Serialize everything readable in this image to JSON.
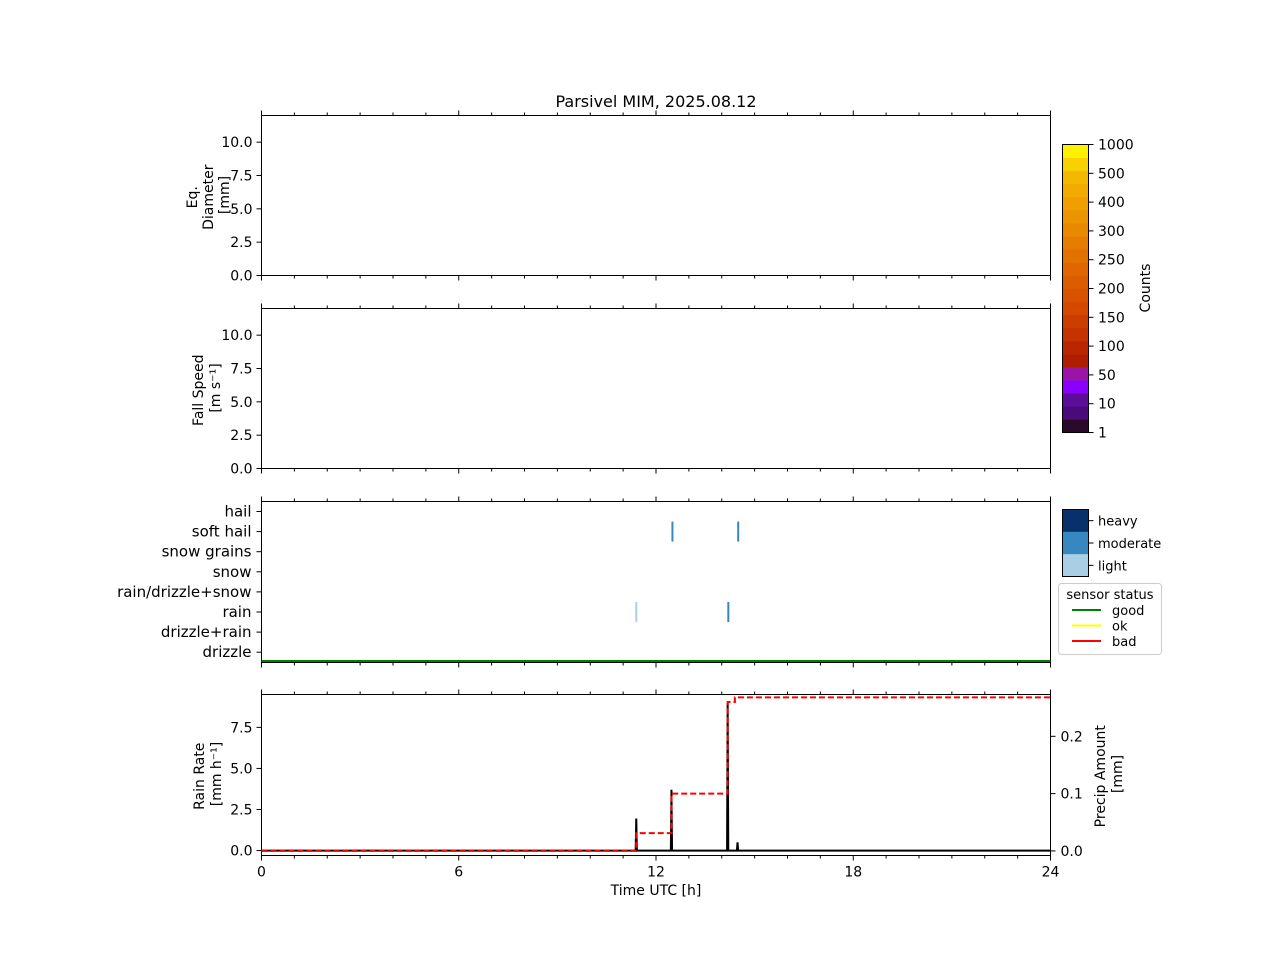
{
  "chart_data": {
    "title": "Parsivel MIM, 2025.08.12",
    "xlabel": "Time UTC [h]",
    "x_ticks": [
      "0",
      "6",
      "12",
      "18",
      "24"
    ],
    "xlim": [
      0,
      24
    ],
    "panels": [
      {
        "type": "heatmap",
        "ylabel_lines": [
          "Eq.",
          "Diameter",
          "[mm]"
        ],
        "ylim": [
          0,
          12
        ],
        "y_ticks": [
          "0.0",
          "2.5",
          "5.0",
          "7.5",
          "10.0"
        ],
        "data": []
      },
      {
        "type": "heatmap",
        "ylabel_lines": [
          "Fall Speed",
          "[m s⁻¹]"
        ],
        "ylim": [
          0,
          12
        ],
        "y_ticks": [
          "0.0",
          "2.5",
          "5.0",
          "7.5",
          "10.0"
        ],
        "data": []
      },
      {
        "type": "scatter",
        "categories": [
          "hail",
          "soft hail",
          "snow grains",
          "snow",
          "rain/drizzle+snow",
          "rain",
          "drizzle+rain",
          "drizzle"
        ],
        "events": [
          {
            "time": 11.4,
            "category": "rain",
            "intensity": "light"
          },
          {
            "time": 14.2,
            "category": "rain",
            "intensity": "moderate"
          },
          {
            "time": 12.5,
            "category": "soft hail",
            "intensity": "moderate"
          },
          {
            "time": 14.5,
            "category": "soft hail",
            "intensity": "moderate"
          }
        ],
        "sensor_status": {
          "segments": [
            {
              "from": 0,
              "to": 24,
              "status": "good"
            }
          ]
        }
      },
      {
        "type": "line",
        "ylabel_lines": [
          "Rain Rate",
          "[mm h⁻¹]"
        ],
        "ylim": [
          -0.3,
          9.5
        ],
        "y_ticks": [
          "0.0",
          "2.5",
          "5.0",
          "7.5"
        ],
        "y2label_lines": [
          "Precip Amount",
          "[mm]"
        ],
        "y2lim": [
          -0.008,
          0.273
        ],
        "y2_ticks": [
          "0.0",
          "0.1",
          "0.2"
        ],
        "rain_rate_spikes": [
          {
            "time": 11.4,
            "value": 1.95
          },
          {
            "time": 12.47,
            "value": 3.7
          },
          {
            "time": 14.18,
            "value": 9.0
          },
          {
            "time": 14.48,
            "value": 0.5
          }
        ],
        "precip_amount_steps": [
          {
            "time": 0,
            "value": 0.0
          },
          {
            "time": 11.4,
            "value": 0.031
          },
          {
            "time": 12.47,
            "value": 0.1
          },
          {
            "time": 14.18,
            "value": 0.26
          },
          {
            "time": 14.4,
            "value": 0.268
          },
          {
            "time": 24,
            "value": 0.268
          }
        ]
      }
    ],
    "colorbar": {
      "label": "Counts",
      "tick_labels": [
        "1",
        "10",
        "50",
        "100",
        "150",
        "200",
        "250",
        "300",
        "400",
        "500",
        "1000"
      ],
      "colors": [
        "#2a0a2a",
        "#4b0a7a",
        "#5e0d98",
        "#8a00ff",
        "#9b14a8",
        "#b01c00",
        "#bb2600",
        "#c43300",
        "#cc3d00",
        "#d44800",
        "#d85200",
        "#dc5c00",
        "#e06600",
        "#e37100",
        "#e67d00",
        "#e98900",
        "#ec9400",
        "#efa000",
        "#f2ac00",
        "#f5b800",
        "#f8d200",
        "#fff000"
      ]
    },
    "intensity_legend": {
      "entries": [
        {
          "label": "heavy",
          "color": "#08306b"
        },
        {
          "label": "moderate",
          "color": "#3787c0"
        },
        {
          "label": "light",
          "color": "#a9cfe5"
        }
      ]
    },
    "status_legend": {
      "title": "sensor status",
      "entries": [
        {
          "label": "good",
          "color": "#008000"
        },
        {
          "label": "ok",
          "color": "#ffff00"
        },
        {
          "label": "bad",
          "color": "#ff0000"
        }
      ]
    }
  }
}
